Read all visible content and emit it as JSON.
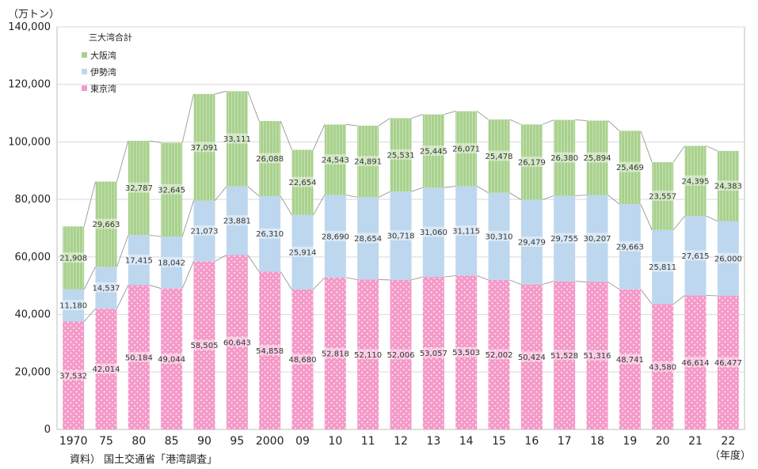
{
  "chart_data": {
    "type": "bar",
    "stacked": true,
    "unit_label": "（万トン）",
    "xunit_label": "（年度）",
    "source_note": "資料） 国土交通省「港湾調査」",
    "legend_title": "三大湾合計",
    "legend_placement": "top-left",
    "ylim": [
      0,
      140000
    ],
    "yticks": [
      0,
      20000,
      40000,
      60000,
      80000,
      100000,
      120000,
      140000
    ],
    "ytick_labels": [
      "0",
      "20,000",
      "40,000",
      "60,000",
      "80,000",
      "100,000",
      "120,000",
      "140,000"
    ],
    "grid": true,
    "categories": [
      "1970",
      "75",
      "80",
      "85",
      "90",
      "95",
      "2000",
      "09",
      "10",
      "11",
      "12",
      "13",
      "14",
      "15",
      "16",
      "17",
      "18",
      "19",
      "20",
      "21",
      "22"
    ],
    "series": [
      {
        "name": "東京湾",
        "color": "#f49ac8",
        "values": [
          37532,
          42014,
          50184,
          49044,
          58505,
          60643,
          54858,
          48680,
          52818,
          52110,
          52006,
          53057,
          53503,
          52002,
          50424,
          51528,
          51316,
          48741,
          43580,
          46614,
          46477
        ],
        "labels": [
          "37,532",
          "42,014",
          "50,184",
          "49,044",
          "58,505",
          "60,643",
          "54,858",
          "48,680",
          "52,818",
          "52,110",
          "52,006",
          "53,057",
          "53,503",
          "52,002",
          "50,424",
          "51,528",
          "51,316",
          "48,741",
          "43,580",
          "46,614",
          "46,477"
        ]
      },
      {
        "name": "伊勢湾",
        "color": "#bdd7ee",
        "values": [
          11180,
          14537,
          17415,
          18042,
          21073,
          23881,
          26310,
          25914,
          28690,
          28654,
          30718,
          31060,
          31115,
          30310,
          29479,
          29755,
          30207,
          29663,
          25811,
          27615,
          26000
        ],
        "labels": [
          "11,180",
          "14,537",
          "17,415",
          "18,042",
          "21,073",
          "23,881",
          "26,310",
          "25,914",
          "28,690",
          "28,654",
          "30,718",
          "31,060",
          "31,115",
          "30,310",
          "29,479",
          "29,755",
          "30,207",
          "29,663",
          "25,811",
          "27,615",
          "26,000"
        ]
      },
      {
        "name": "大阪湾",
        "color": "#a9d18e",
        "values": [
          21908,
          29663,
          32787,
          32645,
          37091,
          33111,
          26088,
          22654,
          24543,
          24891,
          25531,
          25445,
          26071,
          25478,
          26179,
          26380,
          25894,
          25469,
          23557,
          24395,
          24383
        ],
        "labels": [
          "21,908",
          "29,663",
          "32,787",
          "32,645",
          "37,091",
          "33,111",
          "26,088",
          "22,654",
          "24,543",
          "24,891",
          "25,531",
          "25,445",
          "26,071",
          "25,478",
          "26,179",
          "26,380",
          "25,894",
          "25,469",
          "23,557",
          "24,395",
          "24,383"
        ]
      }
    ]
  }
}
